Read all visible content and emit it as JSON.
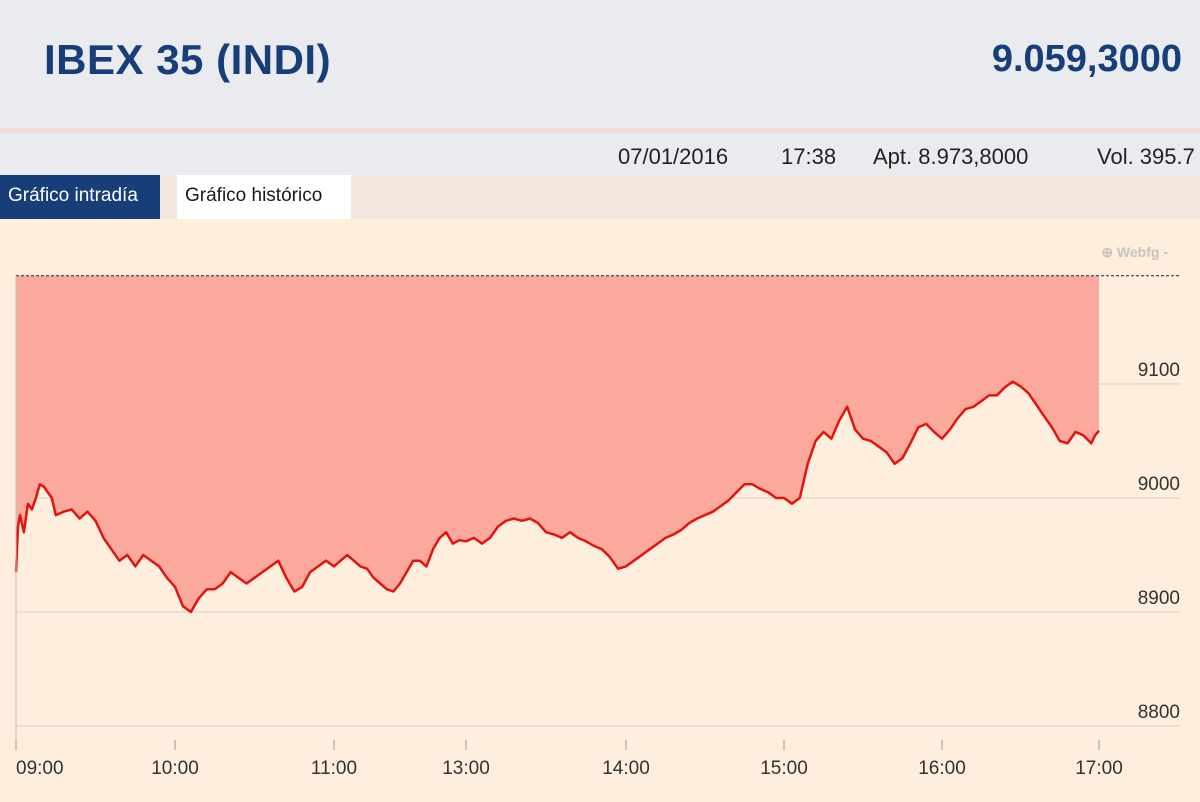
{
  "header": {
    "title": "IBEX 35 (INDI)",
    "price": "9.059,3000"
  },
  "info": {
    "date": "07/01/2016",
    "time": "17:38",
    "opening": "Apt. 8.973,8000",
    "volume": "Vol. 395.7"
  },
  "tabs": [
    {
      "label": "Gráfico intradía",
      "active": true
    },
    {
      "label": "Gráfico histórico",
      "active": false
    }
  ],
  "watermark": "⊕ Webfg -",
  "colors": {
    "header_text": "#173e78",
    "area_fill": "#fba99d",
    "line": "#e3140f",
    "background": "#fdeedd"
  },
  "chart_data": {
    "type": "area",
    "x_ticks": [
      "09:00",
      "10:00",
      "11:00",
      "13:00",
      "14:00",
      "15:00",
      "16:00",
      "17:00"
    ],
    "y_ticks": [
      "9100",
      "9000",
      "8900",
      "8800"
    ],
    "ylim": [
      8790,
      9195
    ],
    "reference_line": 9195,
    "grid": true,
    "series": [
      {
        "values": [
          [
            0.0,
            8935
          ],
          [
            0.05,
            8975
          ],
          [
            0.1,
            8985
          ],
          [
            0.2,
            8970
          ],
          [
            0.3,
            8995
          ],
          [
            0.4,
            8990
          ],
          [
            0.5,
            9000
          ],
          [
            0.6,
            9012
          ],
          [
            0.7,
            9010
          ],
          [
            0.8,
            9005
          ],
          [
            0.9,
            9000
          ],
          [
            1.0,
            8985
          ],
          [
            1.2,
            8988
          ],
          [
            1.4,
            8990
          ],
          [
            1.6,
            8982
          ],
          [
            1.8,
            8988
          ],
          [
            2.0,
            8980
          ],
          [
            2.2,
            8965
          ],
          [
            2.4,
            8955
          ],
          [
            2.6,
            8945
          ],
          [
            2.8,
            8950
          ],
          [
            3.0,
            8940
          ],
          [
            3.2,
            8950
          ],
          [
            3.4,
            8945
          ],
          [
            3.6,
            8940
          ],
          [
            3.8,
            8930
          ],
          [
            4.0,
            8922
          ],
          [
            4.2,
            8905
          ],
          [
            4.4,
            8900
          ],
          [
            4.6,
            8912
          ],
          [
            4.8,
            8920
          ],
          [
            5.0,
            8920
          ],
          [
            5.2,
            8925
          ],
          [
            5.4,
            8935
          ],
          [
            5.6,
            8930
          ],
          [
            5.8,
            8925
          ],
          [
            6.0,
            8930
          ],
          [
            6.2,
            8935
          ],
          [
            6.4,
            8940
          ],
          [
            6.6,
            8945
          ],
          [
            6.8,
            8930
          ],
          [
            7.0,
            8918
          ],
          [
            7.2,
            8922
          ],
          [
            7.4,
            8935
          ],
          [
            7.6,
            8940
          ],
          [
            7.8,
            8945
          ],
          [
            8.0,
            8940
          ],
          [
            8.2,
            8945
          ],
          [
            8.4,
            8950
          ],
          [
            8.6,
            8945
          ],
          [
            8.8,
            8940
          ],
          [
            9.0,
            8938
          ],
          [
            9.2,
            8930
          ],
          [
            9.4,
            8925
          ],
          [
            9.6,
            8920
          ],
          [
            9.8,
            8918
          ],
          [
            10.0,
            8925
          ],
          [
            10.2,
            8935
          ],
          [
            10.4,
            8945
          ],
          [
            10.6,
            8945
          ],
          [
            10.8,
            8940
          ],
          [
            11.0,
            8955
          ],
          [
            11.2,
            8965
          ],
          [
            11.4,
            8970
          ],
          [
            11.6,
            8960
          ],
          [
            11.8,
            8963
          ],
          [
            12.0,
            8962
          ],
          [
            12.2,
            8965
          ],
          [
            12.4,
            8960
          ],
          [
            12.6,
            8965
          ],
          [
            12.8,
            8975
          ],
          [
            13.0,
            8980
          ],
          [
            13.2,
            8982
          ],
          [
            13.4,
            8980
          ],
          [
            13.6,
            8982
          ],
          [
            13.8,
            8978
          ],
          [
            14.0,
            8970
          ],
          [
            14.2,
            8968
          ],
          [
            14.4,
            8965
          ],
          [
            14.6,
            8970
          ],
          [
            14.8,
            8965
          ],
          [
            15.0,
            8962
          ],
          [
            15.2,
            8958
          ],
          [
            15.4,
            8955
          ],
          [
            15.6,
            8948
          ],
          [
            15.8,
            8938
          ],
          [
            16.0,
            8940
          ],
          [
            16.2,
            8945
          ],
          [
            16.4,
            8950
          ],
          [
            16.6,
            8955
          ],
          [
            16.8,
            8960
          ],
          [
            17.0,
            8965
          ],
          [
            17.2,
            8968
          ],
          [
            17.4,
            8972
          ],
          [
            17.6,
            8978
          ],
          [
            17.8,
            8982
          ],
          [
            18.0,
            8985
          ],
          [
            18.2,
            8988
          ],
          [
            18.4,
            8993
          ],
          [
            18.6,
            8998
          ],
          [
            18.8,
            9005
          ],
          [
            19.0,
            9012
          ],
          [
            19.2,
            9012
          ],
          [
            19.4,
            9008
          ],
          [
            19.6,
            9005
          ],
          [
            19.8,
            9000
          ],
          [
            20.0,
            9000
          ],
          [
            20.2,
            8995
          ],
          [
            20.4,
            9000
          ],
          [
            20.6,
            9030
          ],
          [
            20.8,
            9050
          ],
          [
            21.0,
            9058
          ],
          [
            21.2,
            9052
          ],
          [
            21.4,
            9068
          ],
          [
            21.6,
            9080
          ],
          [
            21.8,
            9060
          ],
          [
            22.0,
            9052
          ],
          [
            22.2,
            9050
          ],
          [
            22.4,
            9045
          ],
          [
            22.6,
            9040
          ],
          [
            22.8,
            9030
          ],
          [
            23.0,
            9035
          ],
          [
            23.2,
            9048
          ],
          [
            23.4,
            9062
          ],
          [
            23.6,
            9065
          ],
          [
            23.8,
            9058
          ],
          [
            24.0,
            9052
          ],
          [
            24.2,
            9060
          ],
          [
            24.4,
            9070
          ],
          [
            24.6,
            9078
          ],
          [
            24.8,
            9080
          ],
          [
            25.0,
            9085
          ],
          [
            25.2,
            9090
          ],
          [
            25.4,
            9090
          ],
          [
            25.6,
            9097
          ],
          [
            25.8,
            9102
          ],
          [
            26.0,
            9098
          ],
          [
            26.2,
            9092
          ],
          [
            26.4,
            9082
          ],
          [
            26.6,
            9072
          ],
          [
            26.8,
            9062
          ],
          [
            27.0,
            9050
          ],
          [
            27.2,
            9048
          ],
          [
            27.4,
            9058
          ],
          [
            27.6,
            9055
          ],
          [
            27.8,
            9048
          ],
          [
            27.9,
            9055
          ],
          [
            28.0,
            9059
          ]
        ]
      }
    ]
  }
}
